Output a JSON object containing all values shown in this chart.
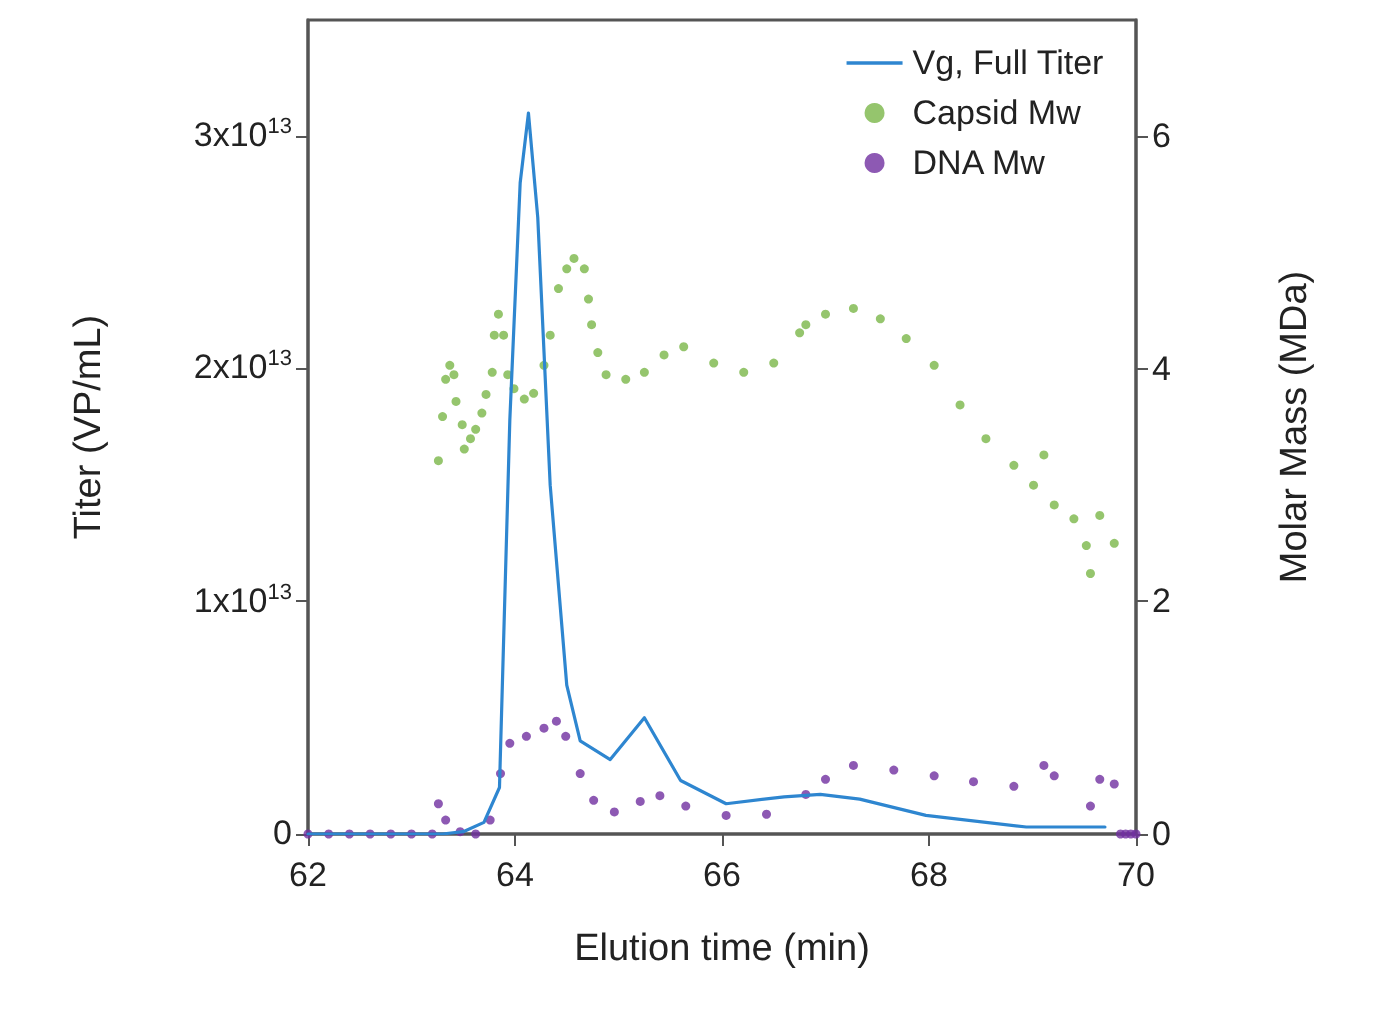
{
  "chart_data": {
    "type": "line",
    "xlabel": "Elution time (min)",
    "ylabel": "Titer (VP/mL)",
    "y2label": "Molar Mass (MDa)",
    "xlim": [
      62,
      70
    ],
    "xticks": [
      62,
      64,
      66,
      68,
      70
    ],
    "ylim": [
      0,
      35000000000000.0
    ],
    "yticks": [
      0,
      {
        "value": 10000000000000.0,
        "label": "1x10$^{13}$"
      },
      {
        "value": 20000000000000.0,
        "label": "2x10$^{13}$"
      },
      {
        "value": 30000000000000.0,
        "label": "3x10$^{13}$"
      }
    ],
    "y2lim": [
      0,
      7
    ],
    "y2ticks": [
      0,
      2,
      4,
      6
    ],
    "grid": false,
    "legend": "top right",
    "series": [
      {
        "name": "Vg, Full Titer",
        "type": "line",
        "color": "#2e86d0",
        "marker": "none",
        "x": [
          62,
          63.3,
          63.5,
          63.7,
          63.85,
          63.95,
          64.05,
          64.13,
          64.22,
          64.34,
          64.5,
          64.63,
          64.92,
          65.25,
          65.6,
          66.04,
          66.6,
          66.95,
          67.33,
          67.97,
          68.94,
          69.7
        ],
        "values": [
          0,
          0,
          100000000000.0,
          500000000000.0,
          2000000000000.0,
          17800000000000.0,
          28000000000000.0,
          31000000000000.0,
          26500000000000.0,
          15000000000000.0,
          6400000000000.0,
          4000000000000.0,
          3200000000000.0,
          5000000000000.0,
          2300000000000.0,
          1300000000000.0,
          1600000000000.0,
          1700000000000.0,
          1500000000000.0,
          800000000000.0,
          300000000000.0,
          300000000000.0
        ]
      },
      {
        "name": "Capsid Mw",
        "type": "scatter",
        "axis": "y2",
        "color": "#7ab648",
        "marker": "circle",
        "x": [
          63.26,
          63.3,
          63.33,
          63.37,
          63.41,
          63.43,
          63.49,
          63.51,
          63.57,
          63.62,
          63.68,
          63.72,
          63.78,
          63.8,
          63.84,
          63.89,
          63.93,
          63.99,
          64.09,
          64.18,
          64.28,
          64.34,
          64.42,
          64.5,
          64.57,
          64.67,
          64.71,
          64.74,
          64.8,
          64.88,
          65.07,
          65.25,
          65.44,
          65.63,
          65.92,
          66.21,
          66.5,
          66.75,
          66.81,
          67.0,
          67.27,
          67.53,
          67.78,
          68.05,
          68.3,
          68.55,
          68.82,
          69.01,
          69.11,
          69.21,
          69.4,
          69.52,
          69.56,
          69.65,
          69.79
        ],
        "values": [
          3.21,
          3.59,
          3.91,
          4.03,
          3.95,
          3.72,
          3.52,
          3.31,
          3.4,
          3.48,
          3.62,
          3.78,
          3.97,
          4.29,
          4.47,
          4.29,
          3.95,
          3.83,
          3.74,
          3.79,
          4.03,
          4.29,
          4.69,
          4.86,
          4.95,
          4.86,
          4.6,
          4.38,
          4.14,
          3.95,
          3.91,
          3.97,
          4.12,
          4.19,
          4.05,
          3.97,
          4.05,
          4.31,
          4.38,
          4.47,
          4.52,
          4.43,
          4.26,
          4.03,
          3.69,
          3.4,
          3.17,
          3.0,
          3.26,
          2.83,
          2.71,
          2.48,
          2.24,
          2.74,
          2.5
        ]
      },
      {
        "name": "DNA Mw",
        "type": "scatter",
        "axis": "y2",
        "color": "#7030a0",
        "marker": "circle",
        "x": [
          62,
          62.2,
          62.4,
          62.6,
          62.8,
          63.0,
          63.2,
          63.26,
          63.33,
          63.47,
          63.62,
          63.76,
          63.86,
          63.95,
          64.11,
          64.28,
          64.4,
          64.49,
          64.63,
          64.76,
          64.96,
          65.21,
          65.4,
          65.65,
          66.04,
          66.43,
          66.81,
          67.0,
          67.27,
          67.66,
          68.05,
          68.43,
          68.82,
          69.11,
          69.21,
          69.56,
          69.65,
          69.79,
          69.85,
          69.9,
          69.95,
          70
        ],
        "values": [
          0,
          0,
          0,
          0,
          0,
          0,
          0,
          0.26,
          0.12,
          0.02,
          0,
          0.12,
          0.52,
          0.78,
          0.84,
          0.91,
          0.97,
          0.84,
          0.52,
          0.29,
          0.19,
          0.28,
          0.33,
          0.24,
          0.16,
          0.17,
          0.34,
          0.47,
          0.59,
          0.55,
          0.5,
          0.45,
          0.41,
          0.59,
          0.5,
          0.24,
          0.47,
          0.43,
          0,
          0,
          0,
          0
        ]
      }
    ]
  }
}
